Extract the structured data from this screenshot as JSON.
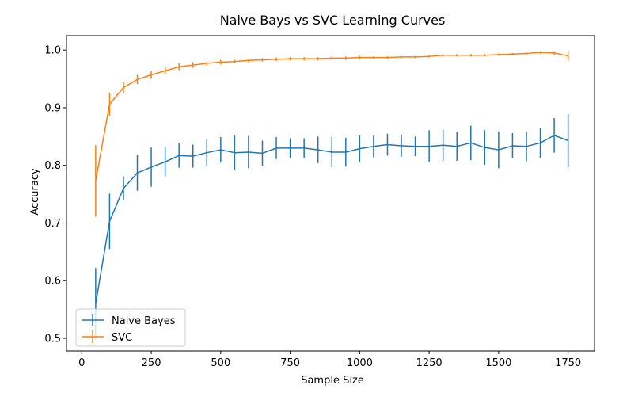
{
  "chart_data": {
    "type": "line",
    "title": "Naive Bays vs SVC Learning Curves",
    "xlabel": "Sample Size",
    "ylabel": "Accuracy",
    "xlim": [
      -55,
      1845
    ],
    "ylim": [
      0.478,
      1.025
    ],
    "xticks": [
      0,
      250,
      500,
      750,
      1000,
      1250,
      1500,
      1750
    ],
    "yticks": [
      0.5,
      0.6,
      0.7,
      0.8,
      0.9,
      1.0
    ],
    "xtick_labels": [
      "0",
      "250",
      "500",
      "750",
      "1000",
      "1250",
      "1500",
      "1750"
    ],
    "ytick_labels": [
      "0.5",
      "0.6",
      "0.7",
      "0.8",
      "0.9",
      "1.0"
    ],
    "legend_position": "lower-left",
    "x": [
      50,
      100,
      150,
      200,
      250,
      300,
      350,
      400,
      450,
      500,
      550,
      600,
      650,
      700,
      750,
      800,
      850,
      900,
      950,
      1000,
      1050,
      1100,
      1150,
      1200,
      1250,
      1300,
      1350,
      1400,
      1450,
      1500,
      1550,
      1600,
      1650,
      1700,
      1750
    ],
    "series": [
      {
        "name": "Naive Bayes",
        "color": "#1f77b4",
        "values": [
          0.56,
          0.703,
          0.76,
          0.787,
          0.797,
          0.806,
          0.817,
          0.816,
          0.822,
          0.827,
          0.822,
          0.823,
          0.821,
          0.83,
          0.83,
          0.83,
          0.827,
          0.823,
          0.823,
          0.829,
          0.833,
          0.836,
          0.834,
          0.833,
          0.833,
          0.835,
          0.833,
          0.839,
          0.831,
          0.827,
          0.834,
          0.833,
          0.839,
          0.852,
          0.843
        ],
        "errors": [
          0.062,
          0.048,
          0.021,
          0.031,
          0.034,
          0.025,
          0.021,
          0.02,
          0.023,
          0.022,
          0.03,
          0.028,
          0.022,
          0.019,
          0.017,
          0.017,
          0.023,
          0.026,
          0.025,
          0.023,
          0.019,
          0.019,
          0.019,
          0.017,
          0.028,
          0.027,
          0.025,
          0.03,
          0.03,
          0.032,
          0.022,
          0.026,
          0.026,
          0.03,
          0.046
        ]
      },
      {
        "name": "SVC",
        "color": "#ff7f0e",
        "values": [
          0.773,
          0.906,
          0.935,
          0.949,
          0.957,
          0.964,
          0.971,
          0.974,
          0.977,
          0.979,
          0.98,
          0.982,
          0.983,
          0.984,
          0.985,
          0.985,
          0.985,
          0.986,
          0.986,
          0.987,
          0.987,
          0.987,
          0.988,
          0.988,
          0.989,
          0.991,
          0.991,
          0.991,
          0.991,
          0.992,
          0.993,
          0.994,
          0.996,
          0.995,
          0.99
        ],
        "errors": [
          0.062,
          0.02,
          0.009,
          0.008,
          0.007,
          0.006,
          0.006,
          0.005,
          0.004,
          0.004,
          0.003,
          0.003,
          0.003,
          0.003,
          0.003,
          0.003,
          0.003,
          0.003,
          0.003,
          0.003,
          0.002,
          0.002,
          0.002,
          0.002,
          0.002,
          0.002,
          0.002,
          0.002,
          0.002,
          0.002,
          0.002,
          0.002,
          0.002,
          0.003,
          0.009
        ]
      }
    ]
  }
}
